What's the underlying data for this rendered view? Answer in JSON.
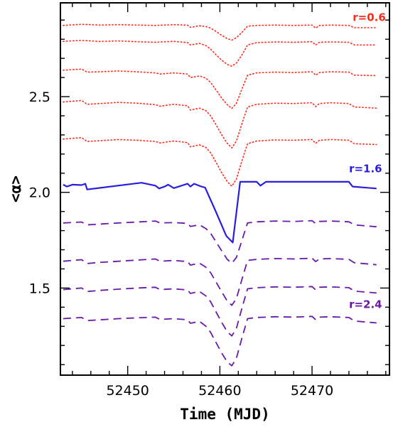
{
  "chart_data": {
    "type": "line",
    "title": "",
    "xlabel": "Time (MJD)",
    "ylabel": "<α>",
    "xlim": [
      52442.7,
      52478.4
    ],
    "ylim": [
      1.045,
      2.99
    ],
    "x_ticks": [
      52450,
      52460,
      52470
    ],
    "x_tick_labels": [
      "52450",
      "52460",
      "52470"
    ],
    "y_ticks": [
      1.5,
      2.0,
      2.5
    ],
    "y_tick_labels": [
      "1.5",
      "2.0",
      "2.5"
    ],
    "grid": false,
    "legend": "none",
    "annotations": [
      {
        "text": "r=0.6",
        "color": "#ff2a1a",
        "x": 52478.0,
        "y": 2.895
      },
      {
        "text": "r=1.6",
        "color": "#2a1ee0",
        "x": 52477.6,
        "y": 2.105
      },
      {
        "text": "r=2.4",
        "color": "#6a1aa8",
        "x": 52477.6,
        "y": 1.395
      }
    ],
    "series": [
      {
        "style": "dotted",
        "color": "#ff2a1a",
        "x": [
          52443.0,
          52445.0,
          52447.0,
          52449.0,
          52451.0,
          52453.0,
          52455.0,
          52456.5,
          52456.8,
          52457.8,
          52458.5,
          52459.0,
          52459.6,
          52460.2,
          52460.8,
          52461.3,
          52461.8,
          52462.4,
          52463.0,
          52464.0,
          52466.0,
          52468.0,
          52470.0,
          52470.4,
          52470.8,
          52472.0,
          52474.0,
          52474.6,
          52477.0
        ],
        "y": [
          2.872,
          2.878,
          2.874,
          2.876,
          2.874,
          2.872,
          2.876,
          2.873,
          2.862,
          2.87,
          2.866,
          2.858,
          2.84,
          2.82,
          2.803,
          2.795,
          2.808,
          2.836,
          2.868,
          2.872,
          2.874,
          2.872,
          2.874,
          2.858,
          2.872,
          2.874,
          2.872,
          2.86,
          2.86
        ]
      },
      {
        "style": "dotted",
        "color": "#ff2a1a",
        "x": [
          52443.0,
          52445.0,
          52447.0,
          52449.0,
          52451.0,
          52453.0,
          52455.0,
          52456.5,
          52456.8,
          52457.8,
          52458.5,
          52459.0,
          52459.6,
          52460.2,
          52460.8,
          52461.3,
          52461.8,
          52462.4,
          52463.0,
          52464.0,
          52466.0,
          52468.0,
          52470.0,
          52470.4,
          52470.8,
          52472.0,
          52474.0,
          52474.6,
          52477.0
        ],
        "y": [
          2.789,
          2.794,
          2.788,
          2.791,
          2.787,
          2.784,
          2.789,
          2.782,
          2.77,
          2.778,
          2.766,
          2.748,
          2.718,
          2.69,
          2.668,
          2.659,
          2.676,
          2.718,
          2.77,
          2.782,
          2.786,
          2.784,
          2.787,
          2.77,
          2.784,
          2.786,
          2.784,
          2.77,
          2.77
        ]
      },
      {
        "style": "dotted",
        "color": "#ff2a1a",
        "x": [
          52443.0,
          52445.0,
          52445.6,
          52447.0,
          52449.0,
          52451.0,
          52453.0,
          52453.5,
          52455.0,
          52456.5,
          52456.8,
          52457.8,
          52458.5,
          52459.0,
          52459.6,
          52460.2,
          52460.8,
          52461.3,
          52461.8,
          52462.4,
          52463.0,
          52464.0,
          52466.0,
          52468.0,
          52470.0,
          52470.4,
          52470.8,
          52472.0,
          52474.0,
          52474.6,
          52477.0
        ],
        "y": [
          2.638,
          2.644,
          2.628,
          2.63,
          2.634,
          2.63,
          2.624,
          2.618,
          2.624,
          2.618,
          2.6,
          2.608,
          2.596,
          2.574,
          2.534,
          2.492,
          2.458,
          2.438,
          2.466,
          2.54,
          2.612,
          2.624,
          2.628,
          2.626,
          2.63,
          2.612,
          2.626,
          2.63,
          2.628,
          2.612,
          2.61
        ]
      },
      {
        "style": "dotted",
        "color": "#ff2a1a",
        "x": [
          52443.0,
          52445.0,
          52445.6,
          52447.0,
          52449.0,
          52451.0,
          52453.0,
          52453.5,
          52455.0,
          52456.5,
          52456.8,
          52457.8,
          52458.5,
          52459.0,
          52459.6,
          52460.2,
          52460.8,
          52461.3,
          52461.8,
          52462.4,
          52463.0,
          52464.0,
          52466.0,
          52468.0,
          52470.0,
          52470.4,
          52470.8,
          52472.0,
          52474.0,
          52474.6,
          52477.0
        ],
        "y": [
          2.472,
          2.48,
          2.46,
          2.464,
          2.47,
          2.466,
          2.458,
          2.45,
          2.46,
          2.452,
          2.43,
          2.44,
          2.426,
          2.4,
          2.352,
          2.3,
          2.256,
          2.232,
          2.268,
          2.36,
          2.446,
          2.46,
          2.466,
          2.464,
          2.468,
          2.448,
          2.464,
          2.468,
          2.464,
          2.446,
          2.44
        ]
      },
      {
        "style": "dotted",
        "color": "#ff2a1a",
        "x": [
          52443.0,
          52445.0,
          52445.6,
          52447.0,
          52449.0,
          52451.0,
          52453.0,
          52453.5,
          52455.0,
          52456.5,
          52456.8,
          52457.8,
          52458.5,
          52459.0,
          52459.6,
          52460.2,
          52460.8,
          52461.3,
          52461.8,
          52462.4,
          52463.0,
          52464.0,
          52466.0,
          52468.0,
          52470.0,
          52470.4,
          52470.8,
          52472.0,
          52474.0,
          52474.6,
          52477.0
        ],
        "y": [
          2.278,
          2.286,
          2.266,
          2.27,
          2.276,
          2.272,
          2.266,
          2.258,
          2.268,
          2.26,
          2.238,
          2.248,
          2.234,
          2.206,
          2.156,
          2.102,
          2.056,
          2.032,
          2.07,
          2.166,
          2.254,
          2.268,
          2.274,
          2.272,
          2.276,
          2.256,
          2.272,
          2.276,
          2.272,
          2.254,
          2.25
        ]
      },
      {
        "style": "solid",
        "color": "#2a1ee0",
        "x": [
          52443.0,
          52443.4,
          52444.0,
          52445.0,
          52445.4,
          52445.6,
          52451.5,
          52453.0,
          52453.4,
          52454.0,
          52454.4,
          52455.0,
          52456.5,
          52456.8,
          52457.2,
          52458.0,
          52458.4,
          52459.6,
          52460.7,
          52461.4,
          52462.2,
          52464.0,
          52464.4,
          52465.0,
          52474.0,
          52474.4,
          52477.0
        ],
        "y": [
          2.04,
          2.03,
          2.04,
          2.038,
          2.045,
          2.015,
          2.05,
          2.035,
          2.02,
          2.03,
          2.04,
          2.022,
          2.045,
          2.03,
          2.045,
          2.03,
          2.025,
          1.895,
          1.772,
          1.738,
          2.055,
          2.055,
          2.035,
          2.055,
          2.055,
          2.03,
          2.02
        ]
      },
      {
        "style": "dashed",
        "color": "#6a1aa8",
        "x": [
          52443.0,
          52445.0,
          52445.6,
          52447.0,
          52449.0,
          52451.0,
          52453.0,
          52453.5,
          52455.0,
          52456.5,
          52456.8,
          52457.8,
          52458.5,
          52459.0,
          52459.6,
          52460.2,
          52460.8,
          52461.3,
          52461.8,
          52462.4,
          52463.0,
          52464.0,
          52466.0,
          52468.0,
          52470.0,
          52470.4,
          52470.8,
          52472.0,
          52474.0,
          52474.6,
          52477.0
        ],
        "y": [
          1.84,
          1.845,
          1.83,
          1.834,
          1.84,
          1.845,
          1.85,
          1.84,
          1.842,
          1.838,
          1.822,
          1.83,
          1.81,
          1.786,
          1.74,
          1.694,
          1.65,
          1.63,
          1.66,
          1.75,
          1.84,
          1.846,
          1.85,
          1.848,
          1.852,
          1.836,
          1.848,
          1.85,
          1.846,
          1.83,
          1.82
        ]
      },
      {
        "style": "dashed",
        "color": "#6a1aa8",
        "x": [
          52443.0,
          52445.0,
          52445.6,
          52447.0,
          52449.0,
          52451.0,
          52453.0,
          52453.5,
          52455.0,
          52456.5,
          52456.8,
          52457.8,
          52458.5,
          52459.0,
          52459.6,
          52460.2,
          52460.8,
          52461.3,
          52461.8,
          52462.4,
          52463.0,
          52464.0,
          52466.0,
          52468.0,
          52470.0,
          52470.4,
          52470.8,
          52472.0,
          52474.0,
          52474.6,
          52477.0
        ],
        "y": [
          1.64,
          1.648,
          1.628,
          1.634,
          1.64,
          1.646,
          1.652,
          1.64,
          1.644,
          1.638,
          1.62,
          1.63,
          1.608,
          1.58,
          1.53,
          1.48,
          1.432,
          1.41,
          1.446,
          1.546,
          1.644,
          1.65,
          1.654,
          1.652,
          1.656,
          1.638,
          1.652,
          1.654,
          1.65,
          1.632,
          1.622
        ]
      },
      {
        "style": "dashed",
        "color": "#6a1aa8",
        "x": [
          52443.0,
          52445.0,
          52445.6,
          52447.0,
          52449.0,
          52451.0,
          52453.0,
          52453.5,
          52455.0,
          52456.5,
          52456.8,
          52457.8,
          52458.5,
          52459.0,
          52459.6,
          52460.2,
          52460.8,
          52461.3,
          52461.8,
          52462.4,
          52463.0,
          52464.0,
          52466.0,
          52468.0,
          52470.0,
          52470.4,
          52470.8,
          52472.0,
          52474.0,
          52474.6,
          52477.0
        ],
        "y": [
          1.492,
          1.5,
          1.482,
          1.488,
          1.494,
          1.5,
          1.504,
          1.492,
          1.496,
          1.49,
          1.472,
          1.482,
          1.458,
          1.428,
          1.374,
          1.32,
          1.272,
          1.25,
          1.29,
          1.396,
          1.496,
          1.502,
          1.506,
          1.504,
          1.508,
          1.49,
          1.504,
          1.506,
          1.502,
          1.484,
          1.474
        ]
      },
      {
        "style": "dashed",
        "color": "#6a1aa8",
        "x": [
          52443.0,
          52445.0,
          52445.6,
          52447.0,
          52449.0,
          52451.0,
          52453.0,
          52453.5,
          52455.0,
          52456.5,
          52456.8,
          52457.8,
          52458.5,
          52459.0,
          52459.6,
          52460.2,
          52460.8,
          52461.3,
          52461.8,
          52462.4,
          52463.0,
          52464.0,
          52466.0,
          52468.0,
          52470.0,
          52470.4,
          52470.8,
          52472.0,
          52474.0,
          52474.6,
          52477.0
        ],
        "y": [
          1.34,
          1.346,
          1.33,
          1.334,
          1.34,
          1.344,
          1.348,
          1.336,
          1.34,
          1.334,
          1.316,
          1.326,
          1.3,
          1.268,
          1.214,
          1.16,
          1.114,
          1.094,
          1.134,
          1.24,
          1.34,
          1.346,
          1.35,
          1.348,
          1.352,
          1.334,
          1.348,
          1.35,
          1.346,
          1.328,
          1.318
        ]
      }
    ]
  }
}
